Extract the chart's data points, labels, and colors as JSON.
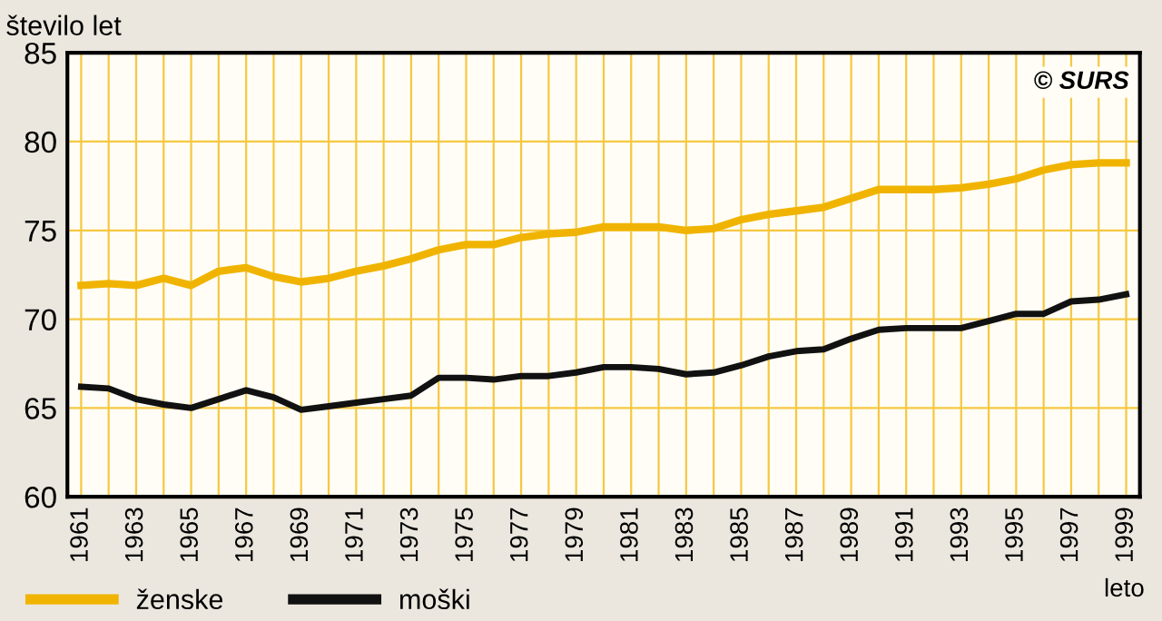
{
  "chart_data": {
    "type": "line",
    "ylabel": "število let",
    "xlabel": "leto",
    "annotations": [
      "© SURS"
    ],
    "x": [
      1961,
      1962,
      1963,
      1964,
      1965,
      1966,
      1967,
      1968,
      1969,
      1970,
      1971,
      1972,
      1973,
      1974,
      1975,
      1976,
      1977,
      1978,
      1979,
      1980,
      1981,
      1982,
      1983,
      1984,
      1985,
      1986,
      1987,
      1988,
      1989,
      1990,
      1991,
      1992,
      1993,
      1994,
      1995,
      1996,
      1997,
      1998,
      1999
    ],
    "series": [
      {
        "name": "ženske",
        "color": "#f0b400",
        "values": [
          71.9,
          72.0,
          71.9,
          72.3,
          71.9,
          72.7,
          72.9,
          72.4,
          72.1,
          72.3,
          72.7,
          73.0,
          73.4,
          73.9,
          74.2,
          74.2,
          74.6,
          74.8,
          74.9,
          75.2,
          75.2,
          75.2,
          75.0,
          75.1,
          75.6,
          75.9,
          76.1,
          76.3,
          76.8,
          77.3,
          77.3,
          77.3,
          77.4,
          77.6,
          77.9,
          78.4,
          78.7,
          78.8,
          78.8
        ]
      },
      {
        "name": "moški",
        "color": "#111111",
        "values": [
          66.2,
          66.1,
          65.5,
          65.2,
          65.0,
          65.5,
          66.0,
          65.6,
          64.9,
          65.1,
          65.3,
          65.5,
          65.7,
          66.7,
          66.7,
          66.6,
          66.8,
          66.8,
          67.0,
          67.3,
          67.3,
          67.2,
          66.9,
          67.0,
          67.4,
          67.9,
          68.2,
          68.3,
          68.9,
          69.4,
          69.5,
          69.5,
          69.5,
          69.9,
          70.3,
          70.3,
          71.0,
          71.1,
          71.4
        ]
      }
    ],
    "xlim": [
      1960.5,
      1999.5
    ],
    "ylim": [
      60,
      85
    ],
    "xticks": [
      1961,
      {
        "value": 1962,
        "label": null
      },
      1963,
      {
        "value": 1964,
        "label": null
      },
      1965,
      {
        "value": 1966,
        "label": null
      },
      1967,
      {
        "value": 1968,
        "label": null
      },
      1969,
      {
        "value": 1970,
        "label": null
      },
      1971,
      {
        "value": 1972,
        "label": null
      },
      1973,
      {
        "value": 1974,
        "label": null
      },
      1975,
      {
        "value": 1976,
        "label": null
      },
      1977,
      {
        "value": 1978,
        "label": null
      },
      1979,
      {
        "value": 1980,
        "label": null
      },
      1981,
      {
        "value": 1982,
        "label": null
      },
      1983,
      {
        "value": 1984,
        "label": null
      },
      1985,
      {
        "value": 1986,
        "label": null
      },
      1987,
      {
        "value": 1988,
        "label": null
      },
      1989,
      {
        "value": 1990,
        "label": null
      },
      1991,
      {
        "value": 1992,
        "label": null
      },
      1993,
      {
        "value": 1994,
        "label": null
      },
      1995,
      {
        "value": 1996,
        "label": null
      },
      1997,
      {
        "value": 1998,
        "label": null
      },
      1999
    ],
    "yticks": [
      60,
      65,
      70,
      75,
      80,
      85
    ],
    "grid": true,
    "legend": "bottom",
    "marker": "none",
    "line_style": "solid"
  }
}
